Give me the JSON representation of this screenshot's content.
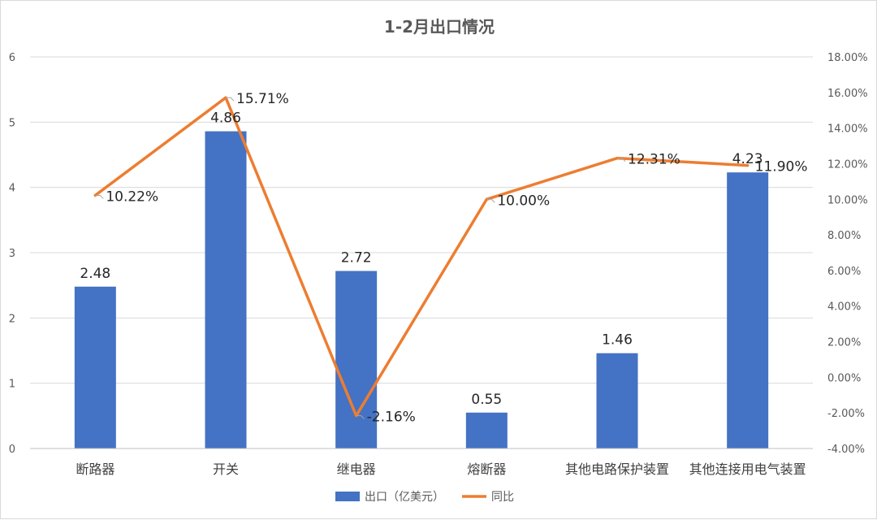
{
  "chart_data": {
    "type": "bar",
    "title": "1-2月出口情况",
    "categories": [
      "断路器",
      "开关",
      "继电器",
      "熔断器",
      "其他电路保护装置",
      "其他连接用电气装置"
    ],
    "series": [
      {
        "name": "出口（亿美元）",
        "type": "bar",
        "axis": "left",
        "color": "#4472C4",
        "values": [
          2.48,
          4.86,
          2.72,
          0.55,
          1.46,
          4.23
        ],
        "labels": [
          "2.48",
          "4.86",
          "2.72",
          "0.55",
          "1.46",
          "4.23"
        ]
      },
      {
        "name": "同比",
        "type": "line",
        "axis": "right",
        "color": "#ED7D31",
        "values": [
          10.22,
          15.71,
          -2.16,
          10.0,
          12.31,
          11.9
        ],
        "labels": [
          "10.22%",
          "15.71%",
          "-2.16%",
          "10.00%",
          "12.31%",
          "11.90%"
        ]
      }
    ],
    "y_left": {
      "ylim": [
        0,
        6
      ],
      "ticks": [
        "0",
        "1",
        "2",
        "3",
        "4",
        "5",
        "6"
      ]
    },
    "y_right": {
      "ylim": [
        -4,
        18
      ],
      "ticks": [
        "-4.00%",
        "-2.00%",
        "0.00%",
        "2.00%",
        "4.00%",
        "6.00%",
        "8.00%",
        "10.00%",
        "12.00%",
        "14.00%",
        "16.00%",
        "18.00%"
      ]
    },
    "grid": true,
    "legend": "bottom"
  }
}
